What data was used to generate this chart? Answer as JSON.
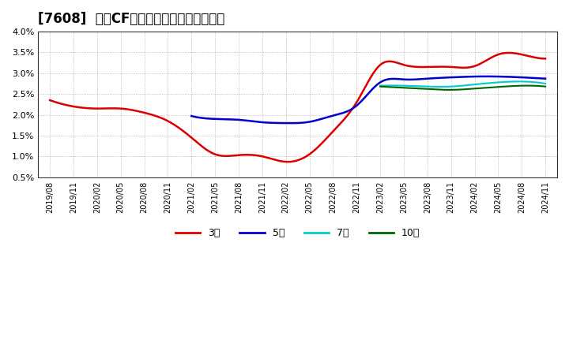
{
  "title": "[7608]  営業CFマージンの標準偏差の推移",
  "ylim": [
    0.005,
    0.04
  ],
  "yticks": [
    0.005,
    0.01,
    0.015,
    0.02,
    0.025,
    0.03,
    0.035,
    0.04
  ],
  "ytick_labels": [
    "0.5%",
    "1.0%",
    "1.5%",
    "2.0%",
    "2.5%",
    "3.0%",
    "3.5%",
    "4.0%"
  ],
  "x_labels": [
    "2019/08",
    "2019/11",
    "2020/02",
    "2020/05",
    "2020/08",
    "2020/11",
    "2021/02",
    "2021/05",
    "2021/08",
    "2021/11",
    "2022/02",
    "2022/05",
    "2022/08",
    "2022/11",
    "2023/02",
    "2023/05",
    "2023/08",
    "2023/11",
    "2024/02",
    "2024/05",
    "2024/08",
    "2024/11"
  ],
  "series": {
    "3年": {
      "color": "#dd0000",
      "x": [
        0,
        1,
        2,
        3,
        4,
        5,
        6,
        7,
        8,
        9,
        10,
        11,
        12,
        13,
        14,
        15,
        16,
        17,
        18,
        19,
        20,
        21
      ],
      "y": [
        0.0235,
        0.022,
        0.0215,
        0.0215,
        0.0205,
        0.0185,
        0.0145,
        0.0105,
        0.0103,
        0.01,
        0.0087,
        0.0105,
        0.016,
        0.023,
        0.032,
        0.032,
        0.0315,
        0.0315,
        0.0317,
        0.0345,
        0.0345,
        0.0335
      ]
    },
    "5年": {
      "color": "#0000cc",
      "x": [
        6,
        7,
        8,
        9,
        10,
        11,
        12,
        13,
        14,
        15,
        16,
        17,
        18,
        19,
        20,
        21
      ],
      "y": [
        0.0197,
        0.019,
        0.0188,
        0.0182,
        0.018,
        0.0183,
        0.0198,
        0.0222,
        0.0278,
        0.0285,
        0.0287,
        0.029,
        0.0292,
        0.0292,
        0.029,
        0.0287
      ]
    },
    "7年": {
      "color": "#00cccc",
      "x": [
        14,
        15,
        16,
        17,
        18,
        19,
        20,
        21
      ],
      "y": [
        0.027,
        0.027,
        0.0268,
        0.0268,
        0.0273,
        0.0278,
        0.028,
        0.0275
      ]
    },
    "10年": {
      "color": "#006600",
      "x": [
        14,
        15,
        16,
        17,
        18,
        19,
        20,
        21
      ],
      "y": [
        0.0268,
        0.0265,
        0.0262,
        0.026,
        0.0263,
        0.0267,
        0.027,
        0.0268
      ]
    }
  },
  "background_color": "#ffffff",
  "plot_background": "#ffffff",
  "grid_color": "#aaaaaa",
  "title_fontsize": 12,
  "legend_entries": [
    "3年",
    "5年",
    "7年",
    "10年"
  ],
  "legend_colors": [
    "#dd0000",
    "#0000cc",
    "#00cccc",
    "#006600"
  ]
}
